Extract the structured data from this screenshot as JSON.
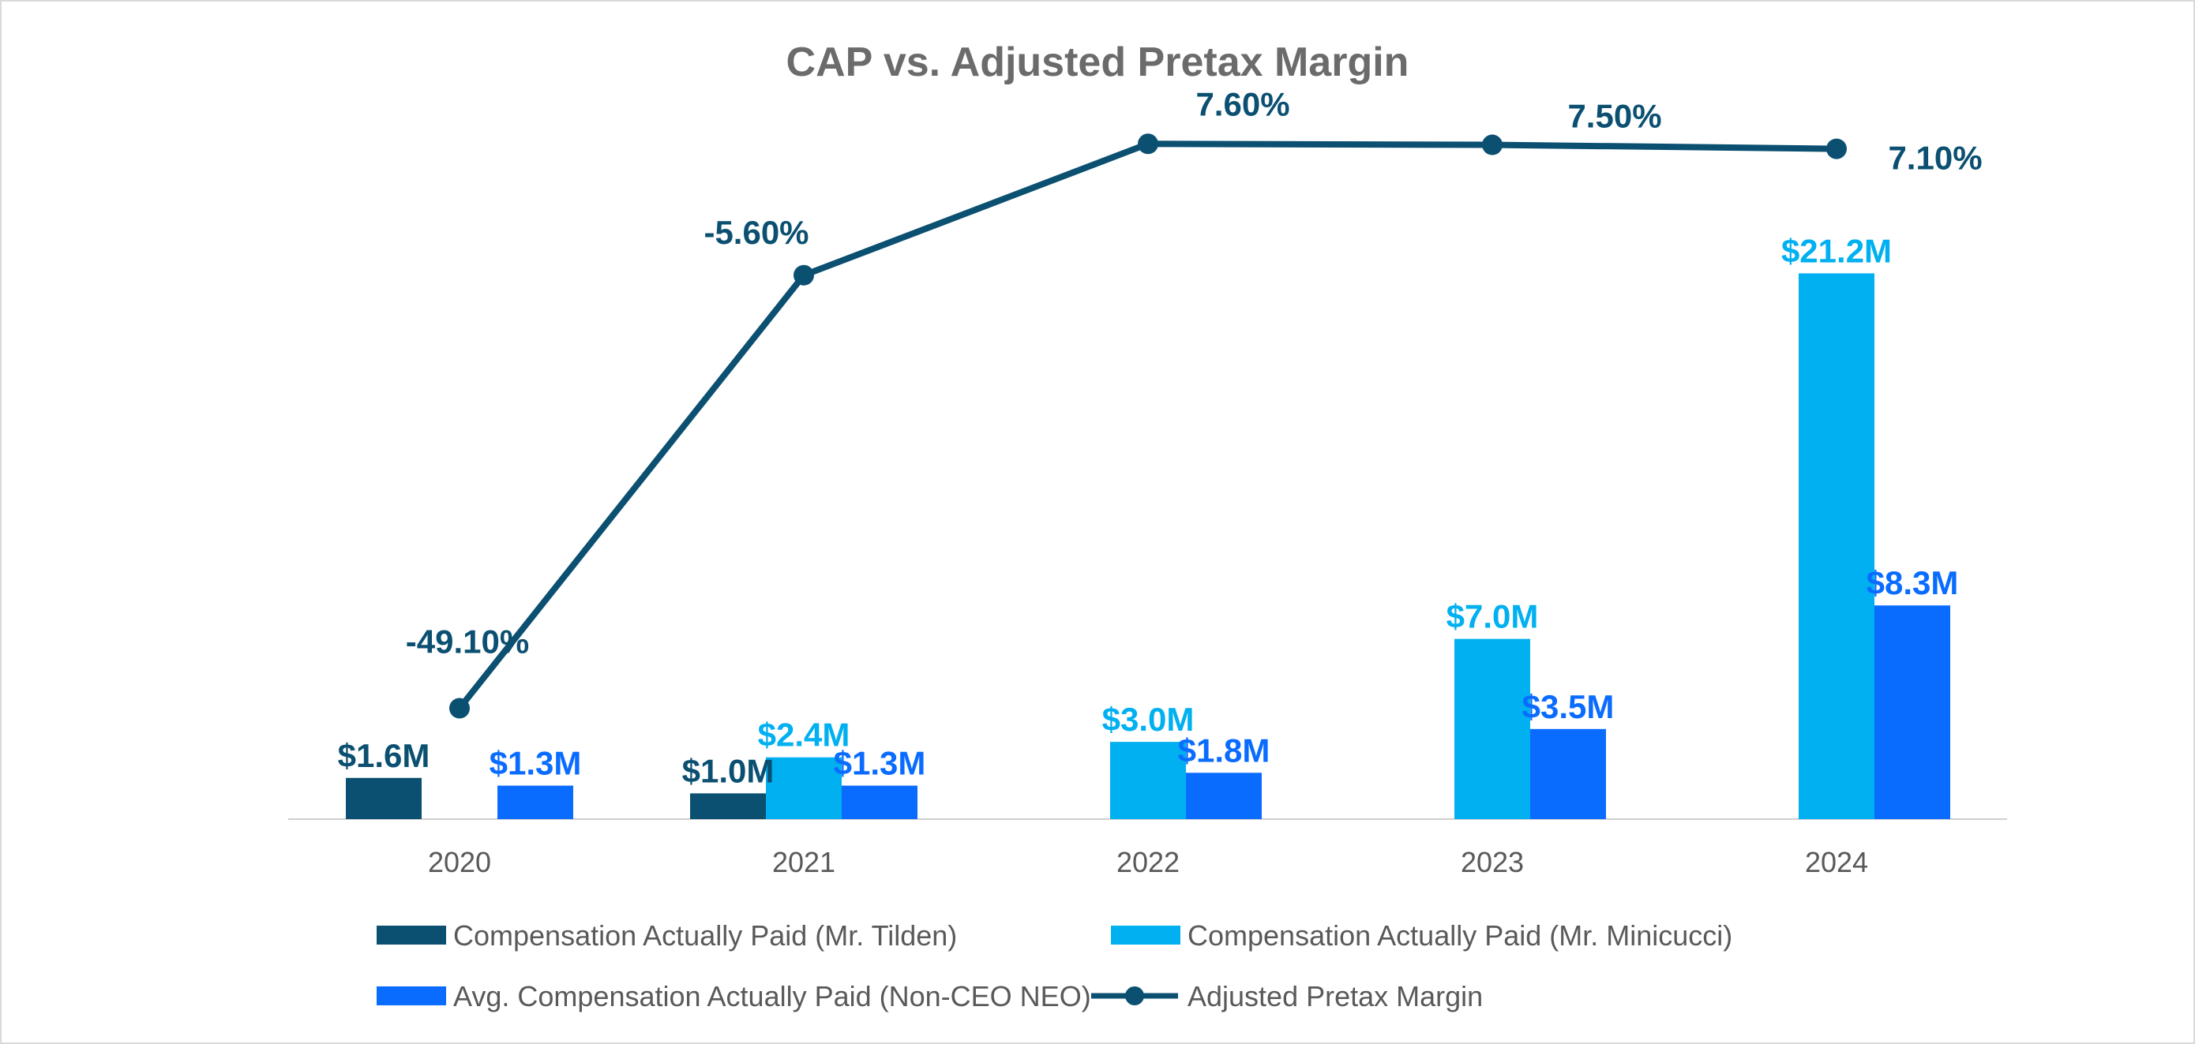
{
  "chart_data": {
    "type": "bar",
    "title": "CAP vs. Adjusted Pretax Margin",
    "categories": [
      "2020",
      "2021",
      "2022",
      "2023",
      "2024"
    ],
    "xlabel": "",
    "ylabel": "",
    "ylim": [
      0,
      22.5
    ],
    "y2lim": [
      -60,
      10
    ],
    "grid": false,
    "legend_position": "bottom",
    "series": [
      {
        "name": "Compensation Actually Paid (Mr. Tilden)",
        "type": "bar",
        "color": "#0b4f71",
        "label_color": "#0b4f71",
        "values": [
          1.6,
          1.0,
          null,
          null,
          null
        ],
        "labels": [
          "$1.6M",
          "$1.0M",
          null,
          null,
          null
        ]
      },
      {
        "name": "Compensation Actually Paid (Mr. Minicucci)",
        "type": "bar",
        "color": "#00b0f0",
        "label_color": "#00b0f0",
        "values": [
          null,
          2.4,
          3.0,
          7.0,
          21.2
        ],
        "labels": [
          null,
          "$2.4M",
          "$3.0M",
          "$7.0M",
          "$21.2M"
        ]
      },
      {
        "name": "Avg. Compensation Actually Paid (Non-CEO NEO)",
        "type": "bar",
        "color": "#0a6cff",
        "label_color": "#0a6cff",
        "values": [
          1.3,
          1.3,
          1.8,
          3.5,
          8.3
        ],
        "labels": [
          "$1.3M",
          "$1.3M",
          "$1.8M",
          "$3.5M",
          "$8.3M"
        ]
      },
      {
        "name": "Adjusted Pretax Margin",
        "type": "line",
        "color": "#0b4f71",
        "label_color": "#0b4f71",
        "values": [
          -49.1,
          -5.6,
          7.6,
          7.5,
          7.1
        ],
        "labels": [
          "-49.10%",
          "-5.60%",
          "7.60%",
          "7.50%",
          "7.10%"
        ]
      }
    ]
  },
  "colors": {
    "title": "#6b6b6b",
    "axis": "#d0d0d0",
    "tick_text": "#595959",
    "legend_text": "#595959"
  }
}
